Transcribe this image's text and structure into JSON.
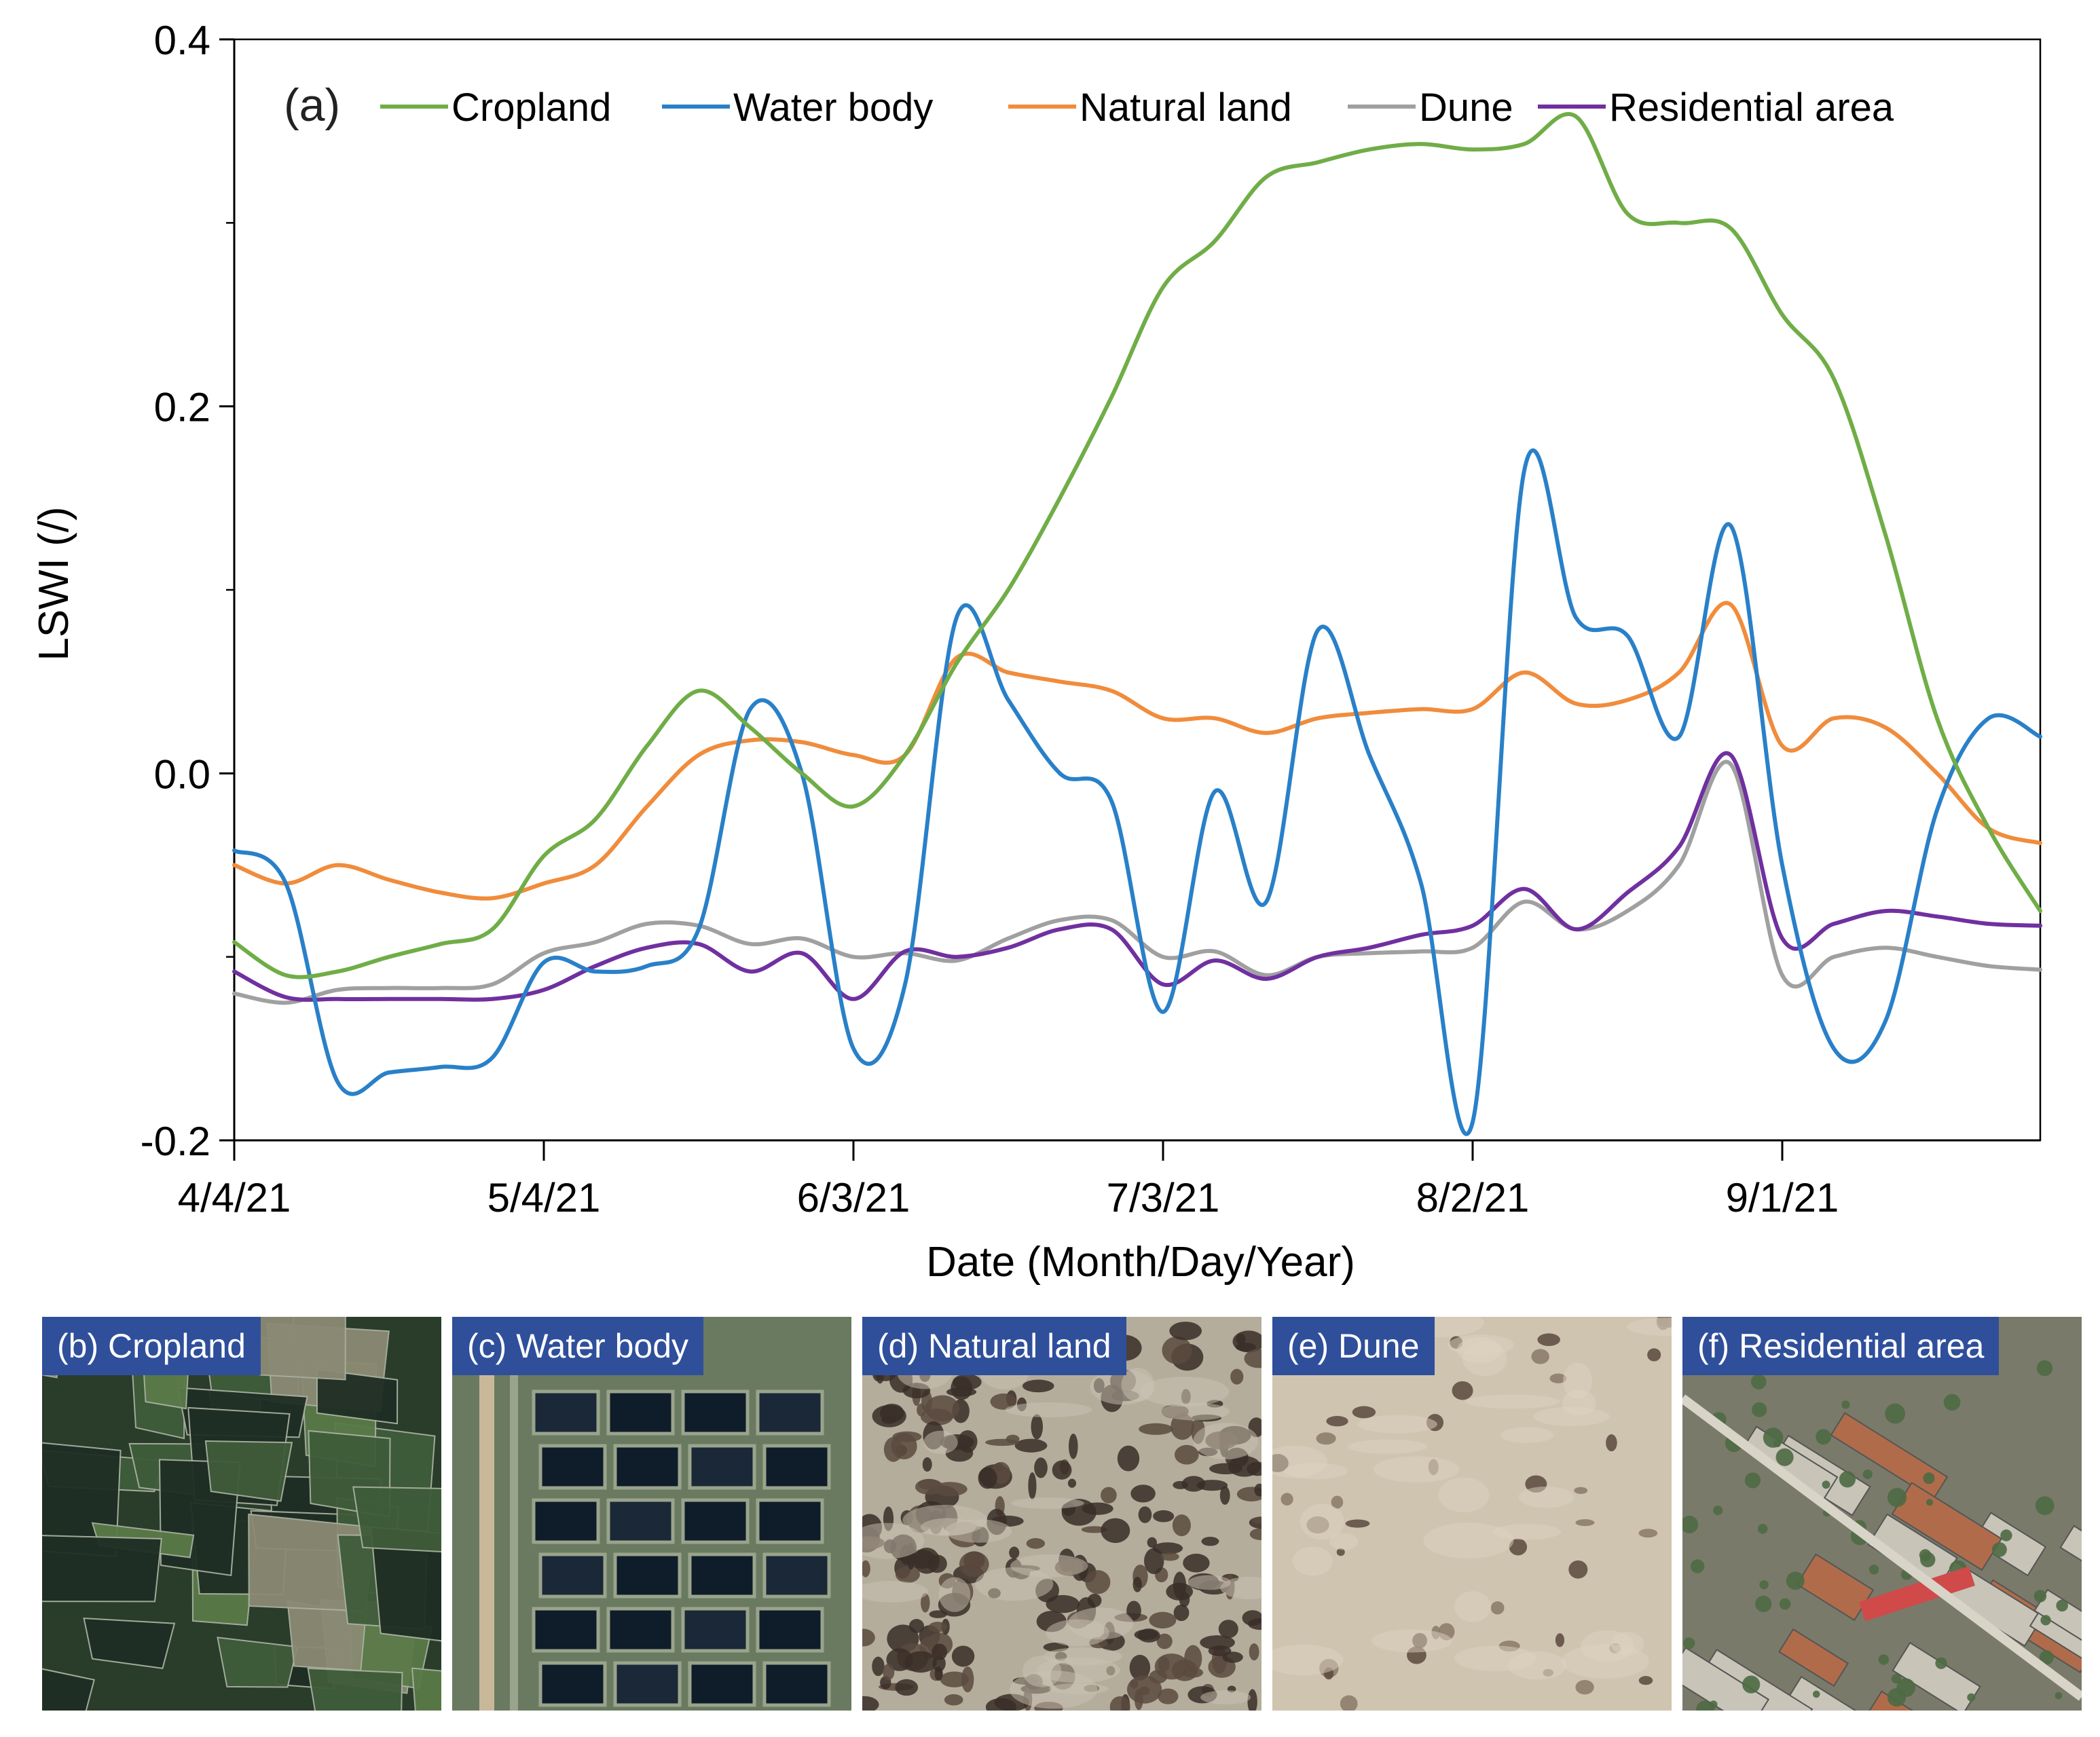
{
  "chart_data": {
    "type": "line",
    "panel_label": "(a)",
    "xlabel": "Date (Month/Day/Year)",
    "ylabel": "LSWI (/)",
    "ylim": [
      -0.2,
      0.4
    ],
    "yticks": [
      -0.2,
      0.0,
      0.2,
      0.4
    ],
    "ytick_labels": [
      "-0.2",
      "0.0",
      "0.2",
      "0.4"
    ],
    "xlim_days": [
      0,
      175
    ],
    "xticks_days": [
      0,
      30,
      60,
      90,
      120,
      150
    ],
    "xtick_labels": [
      "4/4/21",
      "5/4/21",
      "6/3/21",
      "7/3/21",
      "8/2/21",
      "9/1/21"
    ],
    "legend_position": "top",
    "x_days": [
      0,
      5,
      10,
      15,
      20,
      25,
      30,
      35,
      40,
      45,
      50,
      55,
      60,
      65,
      70,
      75,
      80,
      85,
      90,
      95,
      100,
      105,
      110,
      115,
      120,
      125,
      130,
      135,
      140,
      145,
      150,
      155,
      160,
      165,
      170,
      175
    ],
    "series": [
      {
        "name": "Cropland",
        "color": "#70ad47",
        "values": [
          -0.092,
          -0.11,
          -0.108,
          -0.1,
          -0.093,
          -0.085,
          -0.045,
          -0.025,
          0.015,
          0.045,
          0.025,
          0.0,
          -0.018,
          0.01,
          0.06,
          0.1,
          0.15,
          0.205,
          0.265,
          0.29,
          0.325,
          0.333,
          0.34,
          0.343,
          0.34,
          0.343,
          0.358,
          0.305,
          0.3,
          0.297,
          0.25,
          0.215,
          0.13,
          0.03,
          -0.03,
          -0.075
        ]
      },
      {
        "name": "Water body",
        "color": "#2980c8",
        "values": [
          -0.042,
          -0.06,
          -0.168,
          -0.163,
          -0.16,
          -0.155,
          -0.103,
          -0.108,
          -0.105,
          -0.085,
          0.035,
          0.0,
          -0.15,
          -0.115,
          0.085,
          0.04,
          0.0,
          -0.015,
          -0.13,
          -0.01,
          -0.07,
          0.078,
          0.01,
          -0.06,
          -0.19,
          0.165,
          0.085,
          0.075,
          0.02,
          0.135,
          -0.05,
          -0.15,
          -0.135,
          -0.02,
          0.03,
          0.02
        ]
      },
      {
        "name": "Natural land",
        "color": "#f08c3c",
        "values": [
          -0.05,
          -0.06,
          -0.05,
          -0.058,
          -0.065,
          -0.068,
          -0.06,
          -0.05,
          -0.018,
          0.01,
          0.018,
          0.017,
          0.01,
          0.01,
          0.063,
          0.055,
          0.05,
          0.045,
          0.03,
          0.03,
          0.022,
          0.03,
          0.033,
          0.035,
          0.035,
          0.055,
          0.038,
          0.04,
          0.055,
          0.092,
          0.015,
          0.03,
          0.025,
          0.0,
          -0.03,
          -0.038
        ]
      },
      {
        "name": "Dune",
        "color": "#a0a0a0",
        "values": [
          -0.12,
          -0.125,
          -0.118,
          -0.117,
          -0.117,
          -0.115,
          -0.098,
          -0.092,
          -0.082,
          -0.083,
          -0.093,
          -0.09,
          -0.1,
          -0.098,
          -0.102,
          -0.09,
          -0.08,
          -0.08,
          -0.1,
          -0.097,
          -0.11,
          -0.1,
          -0.098,
          -0.097,
          -0.095,
          -0.07,
          -0.085,
          -0.075,
          -0.05,
          0.005,
          -0.11,
          -0.1,
          -0.095,
          -0.1,
          -0.105,
          -0.107
        ]
      },
      {
        "name": "Residential area",
        "color": "#7030a0",
        "values": [
          -0.108,
          -0.122,
          -0.123,
          -0.123,
          -0.123,
          -0.123,
          -0.118,
          -0.105,
          -0.095,
          -0.093,
          -0.108,
          -0.098,
          -0.123,
          -0.097,
          -0.1,
          -0.095,
          -0.085,
          -0.085,
          -0.115,
          -0.102,
          -0.112,
          -0.1,
          -0.095,
          -0.088,
          -0.083,
          -0.063,
          -0.085,
          -0.065,
          -0.04,
          0.01,
          -0.09,
          -0.082,
          -0.075,
          -0.078,
          -0.082,
          -0.083
        ]
      }
    ]
  },
  "panels": [
    {
      "label": "(b) Cropland",
      "palette": {
        "base": "#2a3c2a",
        "a": "#1f2e24",
        "b": "#3f5c3a",
        "c": "#5a7a48",
        "d": "#8b8a74",
        "lines": "#a8b0a0"
      }
    },
    {
      "label": "(c) Water body",
      "palette": {
        "base": "#4a5a4a",
        "a": "#0f1c2a",
        "b": "#1a2838",
        "c": "#6a7a60",
        "d": "#c8b89a",
        "lines": "#9aa48c"
      }
    },
    {
      "label": "(d) Natural land",
      "palette": {
        "base": "#b5ad9c",
        "a": "#3a2e28",
        "b": "#5a4a40",
        "c": "#c9c2b2",
        "d": "#8a8070",
        "lines": "#d8d2c4"
      }
    },
    {
      "label": "(e) Dune",
      "palette": {
        "base": "#cfc4b0",
        "a": "#5a4a3e",
        "b": "#8a7a68",
        "c": "#ddd2bf",
        "d": "#b8ab96",
        "lines": "#e4dccc"
      }
    },
    {
      "label": "(f) Residential area",
      "palette": {
        "base": "#7a7a6a",
        "a": "#b06c4a",
        "b": "#4e6a44",
        "c": "#c8c4b8",
        "d": "#d04a4a",
        "lines": "#d8d4c8"
      }
    }
  ]
}
